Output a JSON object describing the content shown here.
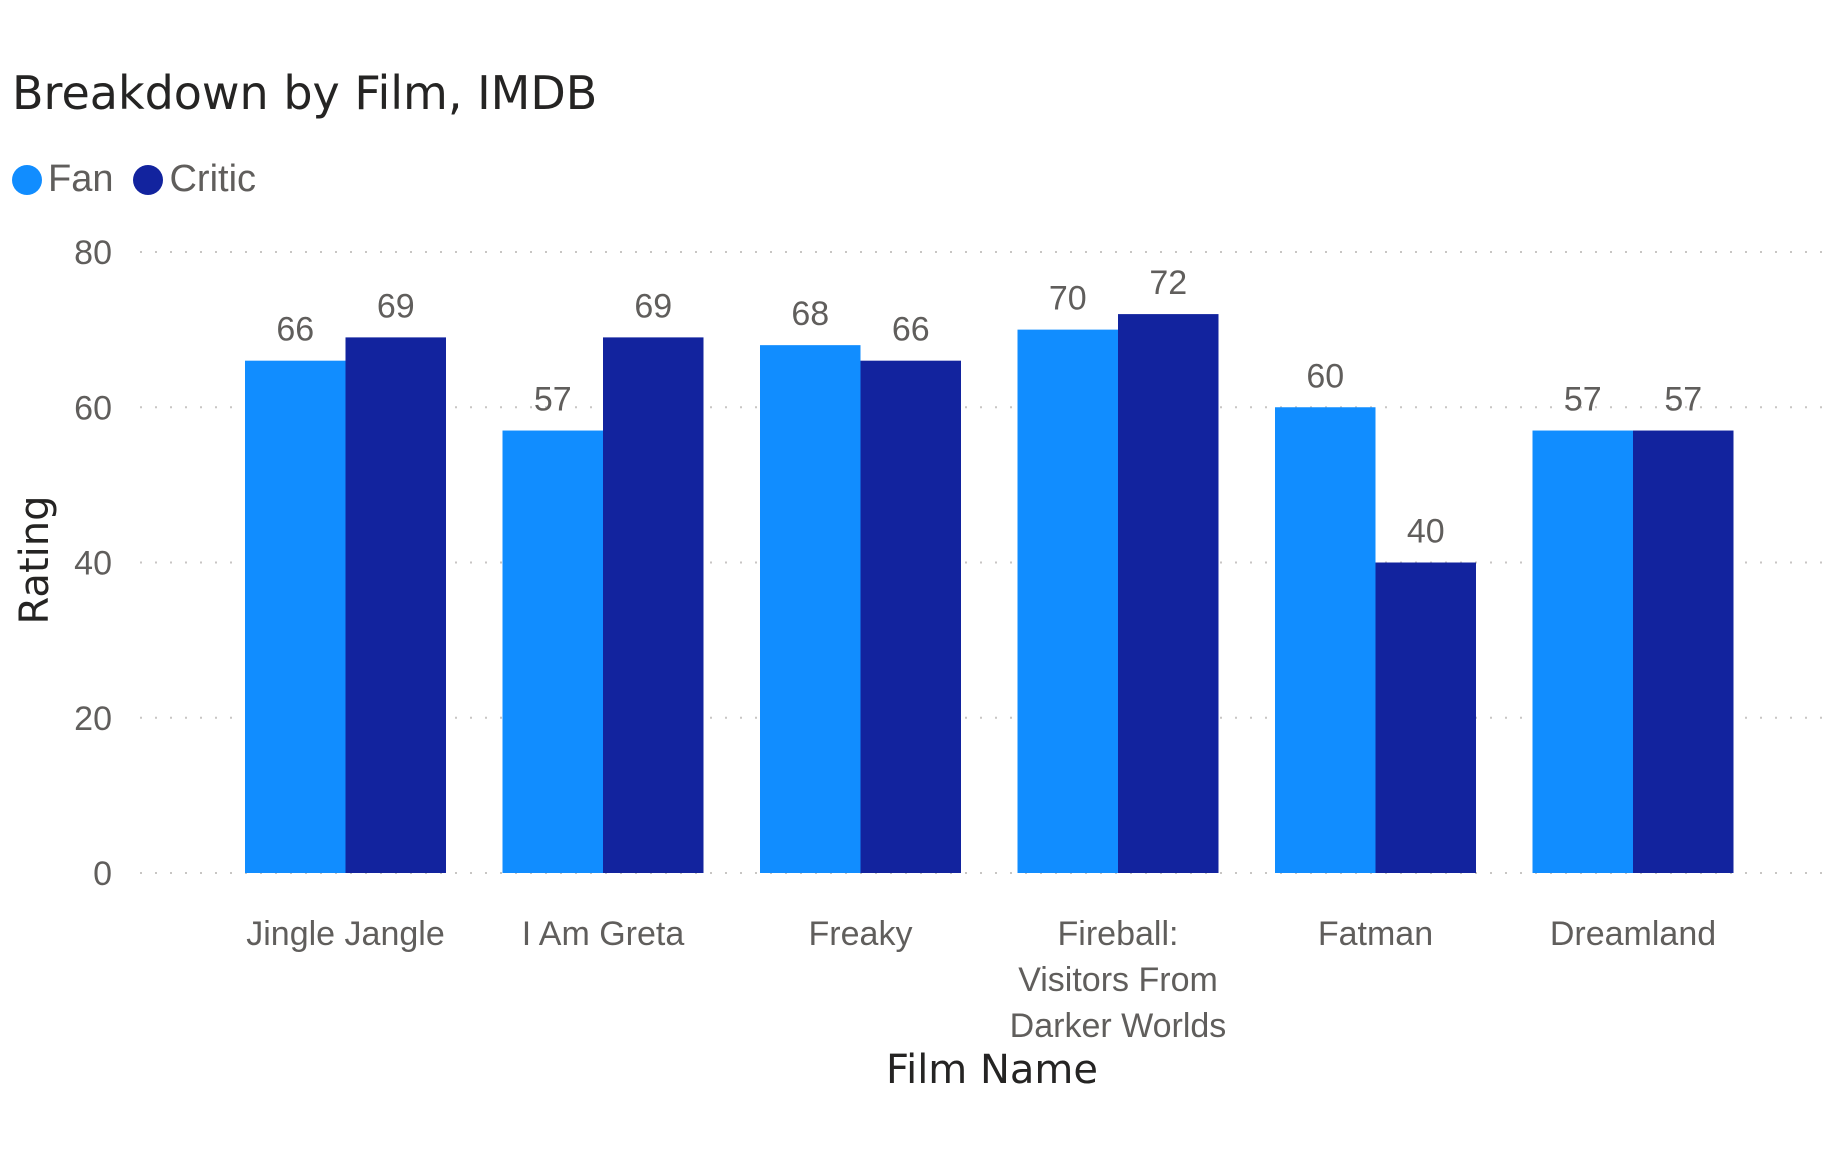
{
  "chart_data": {
    "type": "bar",
    "title": "Breakdown by Film, IMDB",
    "xlabel": "Film Name",
    "ylabel": "Rating",
    "ylim": [
      0,
      80
    ],
    "yticks": [
      0,
      20,
      40,
      60,
      80
    ],
    "grid": true,
    "legend_position": "top-left",
    "categories": [
      [
        "Jingle Jangle"
      ],
      [
        "I Am Greta"
      ],
      [
        "Freaky"
      ],
      [
        "Fireball:",
        "Visitors From",
        "Darker Worlds"
      ],
      [
        "Fatman"
      ],
      [
        "Dreamland"
      ]
    ],
    "series": [
      {
        "name": "Fan",
        "color": "#118DFF",
        "values": [
          66,
          57,
          68,
          70,
          60,
          57
        ]
      },
      {
        "name": "Critic",
        "color": "#12239E",
        "values": [
          69,
          69,
          66,
          72,
          40,
          57
        ]
      }
    ]
  }
}
